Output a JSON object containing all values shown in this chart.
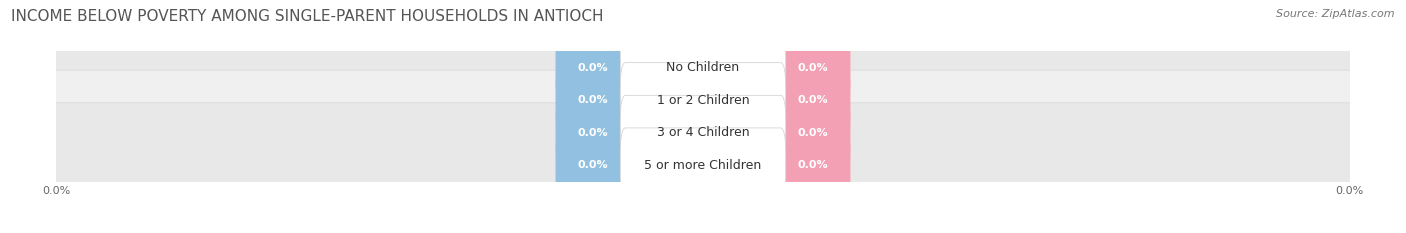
{
  "title": "INCOME BELOW POVERTY AMONG SINGLE-PARENT HOUSEHOLDS IN ANTIOCH",
  "source": "Source: ZipAtlas.com",
  "categories": [
    "No Children",
    "1 or 2 Children",
    "3 or 4 Children",
    "5 or more Children"
  ],
  "father_values": [
    0.0,
    0.0,
    0.0,
    0.0
  ],
  "mother_values": [
    0.0,
    0.0,
    0.0,
    0.0
  ],
  "father_color": "#92C0E0",
  "mother_color": "#F4A0B4",
  "row_color_even": "#F0F0F0",
  "row_color_odd": "#E8E8E8",
  "row_border_color": "#D8D8D8",
  "label_box_color": "#FFFFFF",
  "axis_label_left": "0.0%",
  "axis_label_right": "0.0%",
  "background_color": "#FFFFFF",
  "title_fontsize": 11,
  "source_fontsize": 8,
  "legend_fontsize": 9,
  "value_label_fontsize": 8,
  "category_fontsize": 9,
  "title_color": "#555555",
  "source_color": "#777777",
  "category_color": "#333333",
  "axis_tick_color": "#666666"
}
